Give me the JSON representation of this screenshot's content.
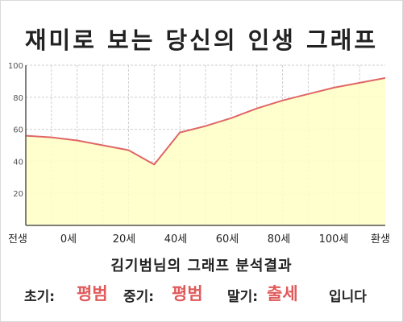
{
  "title": "재미로 보는 당신의 인생 그래프",
  "chart_data": {
    "type": "area",
    "title": "재미로 보는 당신의 인생 그래프",
    "x_labels": [
      "전생",
      "0세",
      "20세",
      "40세",
      "60세",
      "80세",
      "100세",
      "환생"
    ],
    "y_ticks": [
      20,
      40,
      60,
      80,
      100
    ],
    "ylim": [
      0,
      100
    ],
    "grid": true,
    "legend": "none",
    "series": [
      {
        "values": [
          56,
          55,
          53,
          50,
          47,
          38,
          58,
          62,
          67,
          73,
          78,
          82,
          86,
          89,
          92
        ]
      }
    ],
    "colors": {
      "line": "#e06666",
      "fill": "#ffffc4",
      "grid": "#cfcfcf",
      "axis": "#555555"
    }
  },
  "result": {
    "caption": "김기범님의 그래프 분석결과",
    "early_label": "초기:",
    "early_value": "평범",
    "middle_label": "중기:",
    "middle_value": "평범",
    "late_label": "말기:",
    "late_value": "출세",
    "suffix": "입니다"
  }
}
